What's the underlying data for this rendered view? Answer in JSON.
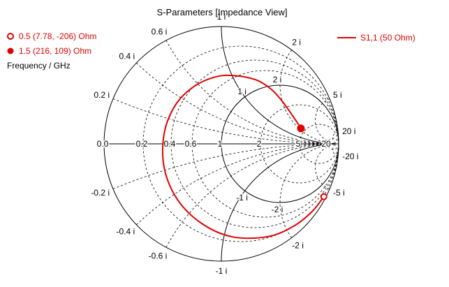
{
  "chart_data": {
    "type": "smith",
    "title": "S-Parameters [Impedance View]",
    "axis_label": "Frequency / GHz",
    "z0_ohm": 50,
    "legend": {
      "label": "S1,1 (50 Ohm)",
      "placement": "top-right",
      "color": "#e00000"
    },
    "markers": [
      {
        "label": "0.5  (7.78, -206) Ohm",
        "style": "hollow-circle",
        "frequency_ghz": 0.5,
        "r_ohm": 7.78,
        "x_ohm": -206
      },
      {
        "label": "1.5  (216, 109) Ohm",
        "style": "filled-circle",
        "frequency_ghz": 1.5,
        "r_ohm": 216,
        "x_ohm": 109
      }
    ],
    "resistance_circles": [
      0.2,
      0.4,
      0.6,
      1,
      2,
      5,
      20
    ],
    "resistance_labels": [
      "0.0",
      "0.2",
      "0.4",
      "0.6",
      "1",
      "2",
      "5",
      "20"
    ],
    "reactance_arcs": [
      0.2,
      0.4,
      0.6,
      1,
      2,
      5,
      20
    ],
    "reactance_labels_outer": [
      {
        "x": 1,
        "text": "1 i"
      },
      {
        "x": 0.6,
        "text": "0.6 i"
      },
      {
        "x": 0.4,
        "text": "0.4 i"
      },
      {
        "x": 0.2,
        "text": "0.2 i"
      },
      {
        "x": 2,
        "text": "2 i"
      },
      {
        "x": 5,
        "text": "5 i"
      },
      {
        "x": 20,
        "text": "20 i"
      },
      {
        "x": -1,
        "text": "-1 i"
      },
      {
        "x": -0.6,
        "text": "-0.6 i"
      },
      {
        "x": -0.4,
        "text": "-0.4 i"
      },
      {
        "x": -0.2,
        "text": "-0.2 i"
      },
      {
        "x": -2,
        "text": "-2 i"
      },
      {
        "x": -5,
        "text": "-5 i"
      },
      {
        "x": -20,
        "text": "-20 i"
      }
    ],
    "reactance_labels_inner": [
      {
        "x": 1,
        "text": "1 i"
      },
      {
        "x": 2,
        "text": "2 i"
      },
      {
        "x": -1,
        "text": "-1 i"
      },
      {
        "x": -2,
        "text": "-2 i"
      }
    ],
    "trace_points": [
      {
        "r": 0.1556,
        "x": -4.12
      },
      {
        "r": 0.18,
        "x": -3.0
      },
      {
        "r": 0.2,
        "x": -2.2
      },
      {
        "r": 0.22,
        "x": -1.6
      },
      {
        "r": 0.25,
        "x": -1.1
      },
      {
        "r": 0.28,
        "x": -0.75
      },
      {
        "r": 0.3,
        "x": -0.45
      },
      {
        "r": 0.32,
        "x": -0.18
      },
      {
        "r": 0.34,
        "x": 0.08
      },
      {
        "r": 0.36,
        "x": 0.32
      },
      {
        "r": 0.4,
        "x": 0.55
      },
      {
        "r": 0.47,
        "x": 0.8
      },
      {
        "r": 0.58,
        "x": 1.04
      },
      {
        "r": 0.78,
        "x": 1.38
      },
      {
        "r": 1.1,
        "x": 1.7
      },
      {
        "r": 1.65,
        "x": 2.0
      },
      {
        "r": 2.6,
        "x": 2.25
      },
      {
        "r": 3.5,
        "x": 2.3
      },
      {
        "r": 4.32,
        "x": 2.18
      }
    ]
  }
}
